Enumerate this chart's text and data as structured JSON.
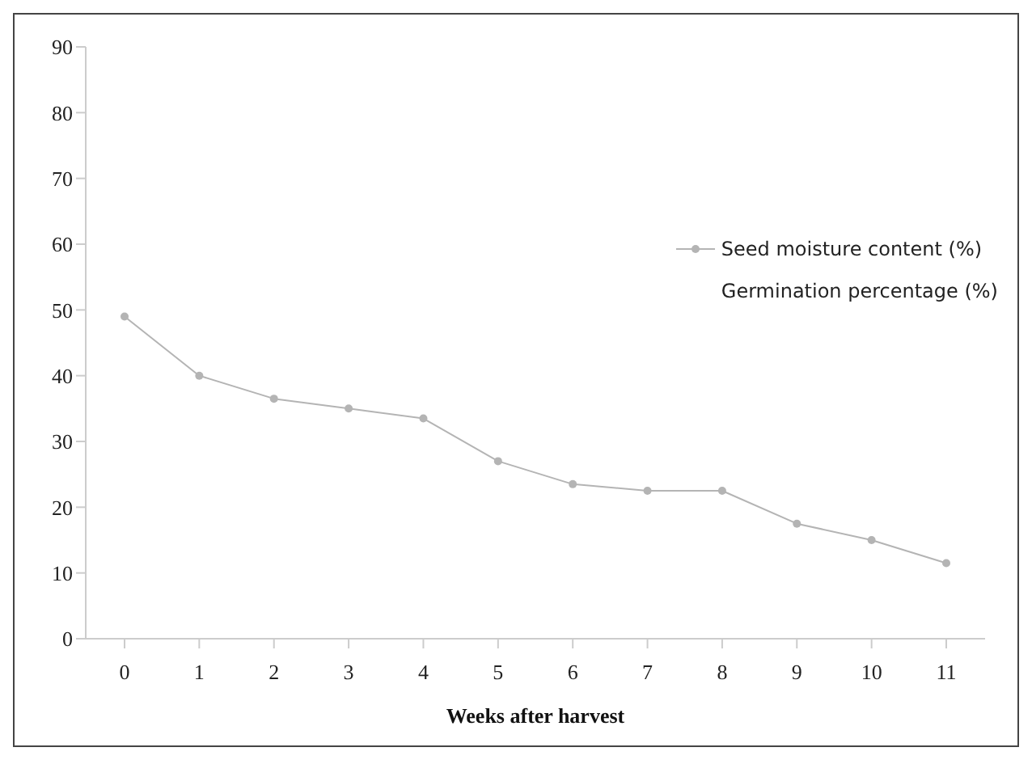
{
  "chart_data": {
    "type": "line",
    "xlabel": "Weeks after harvest",
    "categories": [
      "0",
      "1",
      "2",
      "3",
      "4",
      "5",
      "6",
      "7",
      "8",
      "9",
      "10",
      "11"
    ],
    "series": [
      {
        "name": "Seed moisture content (%)",
        "color": "#b4b4b4",
        "values": [
          49,
          40,
          36.5,
          35,
          33.5,
          27,
          23.5,
          22.5,
          22.5,
          17.5,
          15,
          11.5
        ]
      },
      {
        "name": "Germination percentage (%)",
        "values": [
          null,
          null,
          null,
          null,
          null,
          null,
          null,
          null,
          null,
          null,
          null,
          null
        ]
      }
    ],
    "ylim": [
      0,
      90
    ],
    "yticks": [
      0,
      10,
      20,
      30,
      40,
      50,
      60,
      70,
      80,
      90
    ],
    "grid": false,
    "legend": "right",
    "marker": "circle",
    "line_style": "solid"
  }
}
